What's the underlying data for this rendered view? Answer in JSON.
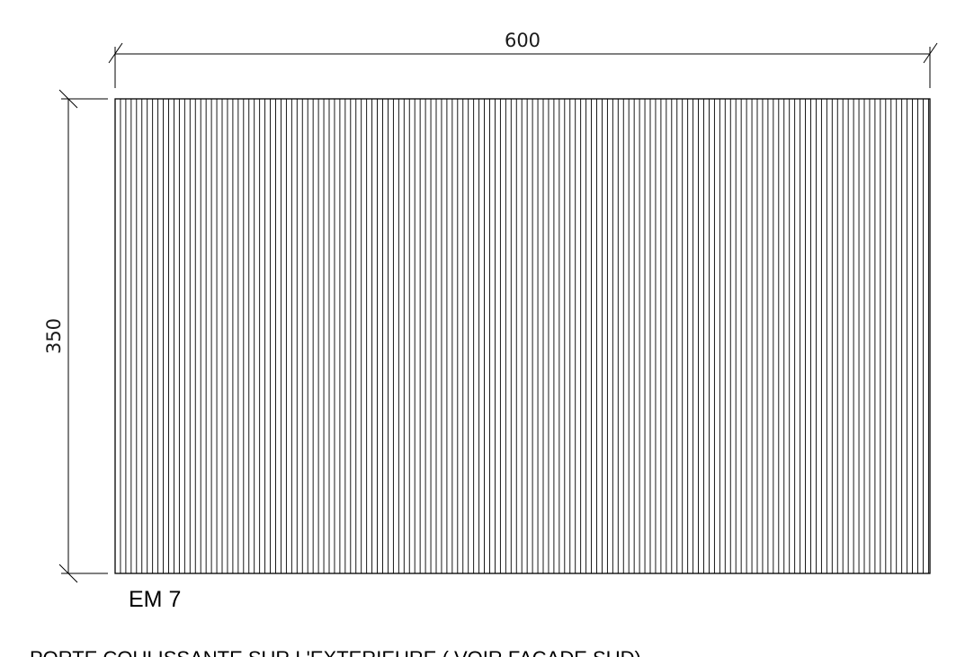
{
  "drawing": {
    "dimensions": {
      "width_label": "600",
      "height_label": "350"
    },
    "panel": {
      "element_tag": "EM 7",
      "pattern": "vertical-slats",
      "line_color": "#000000"
    },
    "caption": "PORTE COULISSANTE SUR L'EXTERIEURE ( VOIR FACADE SUD)"
  }
}
